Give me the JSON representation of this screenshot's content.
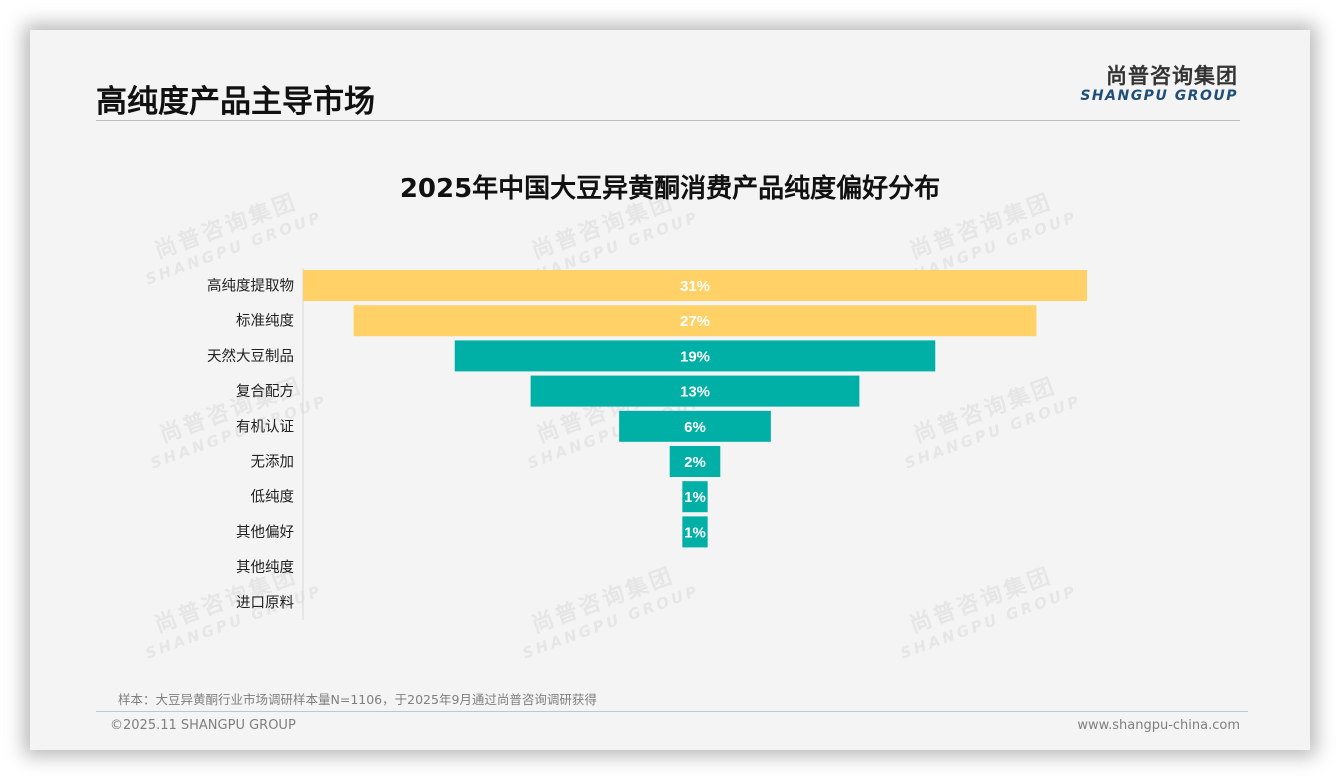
{
  "header": {
    "page_title": "高纯度产品主导市场",
    "logo_cn": "尚普咨询集团",
    "logo_en": "SHANGPU GROUP"
  },
  "watermark": {
    "cn": "尚普咨询集团",
    "en": "SHANGPU GROUP"
  },
  "chart_data": {
    "type": "bar",
    "subtype": "funnel",
    "title": "2025年中国大豆异黄酮消费产品纯度偏好分布",
    "categories": [
      "高纯度提取物",
      "标准纯度",
      "天然大豆制品",
      "复合配方",
      "有机认证",
      "无添加",
      "低纯度",
      "其他偏好",
      "其他纯度",
      "进口原料"
    ],
    "values": [
      31,
      27,
      19,
      13,
      6,
      2,
      1,
      1,
      0,
      0
    ],
    "data_labels": [
      "31%",
      "27%",
      "19%",
      "13%",
      "6%",
      "2%",
      "1%",
      "1%",
      "",
      ""
    ],
    "unit": "%",
    "xlabel": "",
    "ylabel": "",
    "xlim": [
      0,
      31
    ],
    "grid": false,
    "legend": "none",
    "colors": {
      "highlight": "#FFD166",
      "default": "#00AFA5",
      "label_text": "#ffffff"
    },
    "highlight_count": 2
  },
  "footer": {
    "note": "样本：大豆异黄酮行业市场调研样本量N=1106，于2025年9月通过尚普咨询调研获得",
    "copyright": "©2025.11 SHANGPU GROUP",
    "website": "www.shangpu-china.com"
  }
}
